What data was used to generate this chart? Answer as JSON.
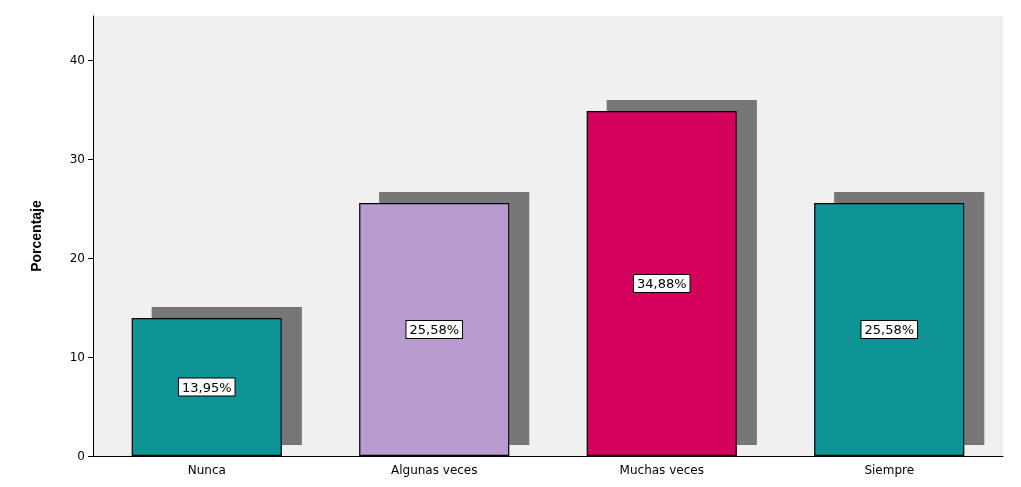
{
  "chart_data": {
    "type": "bar",
    "ylabel": "Porcentaje",
    "categories": [
      "Nunca",
      "Algunas veces",
      "Muchas veces",
      "Siempre"
    ],
    "values": [
      13.95,
      25.58,
      34.88,
      25.58
    ],
    "colors": [
      "#0e9494",
      "#b89ccf",
      "#d4005c",
      "#0e9494"
    ],
    "value_labels": [
      "13,95%",
      "25,58%",
      "34,88%",
      "25,58%"
    ],
    "ylim": [
      0,
      44.5
    ],
    "yticks": [
      0,
      10,
      20,
      30,
      40
    ],
    "grid": false
  }
}
